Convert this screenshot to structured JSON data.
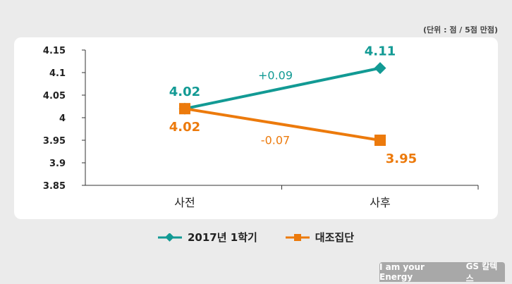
{
  "unit_note": "(단위 : 점 / 5점 만점)",
  "chart_data": {
    "type": "line",
    "categories": [
      "사전",
      "사후"
    ],
    "ylim": [
      3.85,
      4.15
    ],
    "yticks": [
      "4.15",
      "4.1",
      "4.05",
      "4",
      "3.95",
      "3.9",
      "3.85"
    ],
    "series": [
      {
        "name": "2017년 1학기",
        "values": [
          4.02,
          4.11
        ],
        "labels": [
          "4.02",
          "4.11"
        ],
        "color": "#129a94",
        "marker": "diamond",
        "change": "+0.09"
      },
      {
        "name": "대조집단",
        "values": [
          4.02,
          3.95
        ],
        "labels": [
          "4.02",
          "3.95"
        ],
        "color": "#ec7a0c",
        "marker": "square",
        "change": "-0.07"
      }
    ]
  },
  "brand": {
    "slogan": "I am your Energy",
    "logo": "GS 칼텍스"
  }
}
